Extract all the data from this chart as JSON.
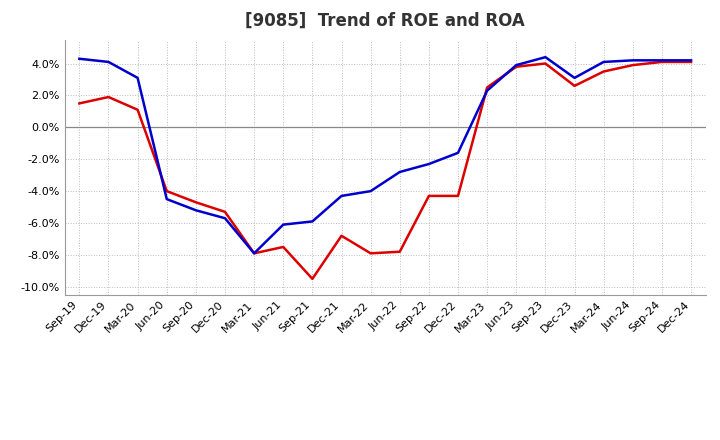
{
  "title": "[9085]  Trend of ROE and ROA",
  "x_labels": [
    "Sep-19",
    "Dec-19",
    "Mar-20",
    "Jun-20",
    "Sep-20",
    "Dec-20",
    "Mar-21",
    "Jun-21",
    "Sep-21",
    "Dec-21",
    "Mar-22",
    "Jun-22",
    "Sep-22",
    "Dec-22",
    "Mar-23",
    "Jun-23",
    "Sep-23",
    "Dec-23",
    "Mar-24",
    "Jun-24",
    "Sep-24",
    "Dec-24"
  ],
  "roe": [
    1.5,
    1.9,
    1.1,
    -4.0,
    -4.7,
    -5.3,
    -7.9,
    -7.5,
    -9.5,
    -6.8,
    -7.9,
    -7.8,
    -4.3,
    -4.3,
    2.5,
    3.8,
    4.0,
    2.6,
    3.5,
    3.9,
    4.1,
    4.1
  ],
  "roa": [
    4.3,
    4.1,
    3.1,
    -4.5,
    -5.2,
    -5.7,
    -7.9,
    -6.1,
    -5.9,
    -4.3,
    -4.0,
    -2.8,
    -2.3,
    -1.6,
    2.3,
    3.9,
    4.4,
    3.1,
    4.1,
    4.2,
    4.2,
    4.2
  ],
  "roe_color": "#dd0000",
  "roa_color": "#0000cc",
  "ylim": [
    -10.5,
    5.5
  ],
  "yticks": [
    -10.0,
    -8.0,
    -6.0,
    -4.0,
    -2.0,
    0.0,
    2.0,
    4.0
  ],
  "background_color": "#ffffff",
  "grid_color": "#bbbbbb",
  "line_width": 1.8,
  "title_fontsize": 12,
  "legend_fontsize": 10,
  "tick_fontsize": 8
}
